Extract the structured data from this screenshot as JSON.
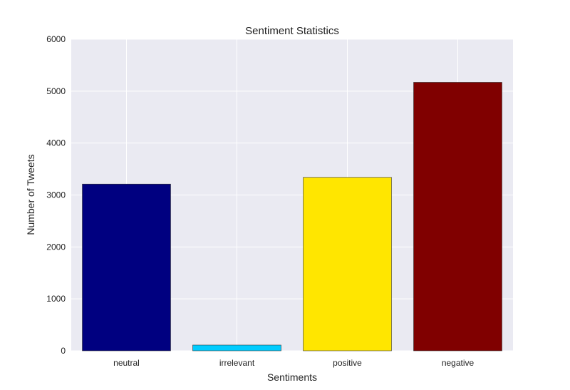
{
  "chart_data": {
    "type": "bar",
    "title": "Sentiment Statistics",
    "xlabel": "Sentiments",
    "ylabel": "Number of Tweets",
    "categories": [
      "neutral",
      "irrelevant",
      "positive",
      "negative"
    ],
    "values": [
      3210,
      110,
      3340,
      5170
    ],
    "colors": [
      "#000080",
      "#00ccff",
      "#ffe600",
      "#800000"
    ],
    "ylim": [
      0,
      6000
    ],
    "yticks": [
      0,
      1000,
      2000,
      3000,
      4000,
      5000,
      6000
    ],
    "grid": true,
    "legend": false,
    "plot_background": "#eaeaf2",
    "grid_color": "#ffffff"
  }
}
